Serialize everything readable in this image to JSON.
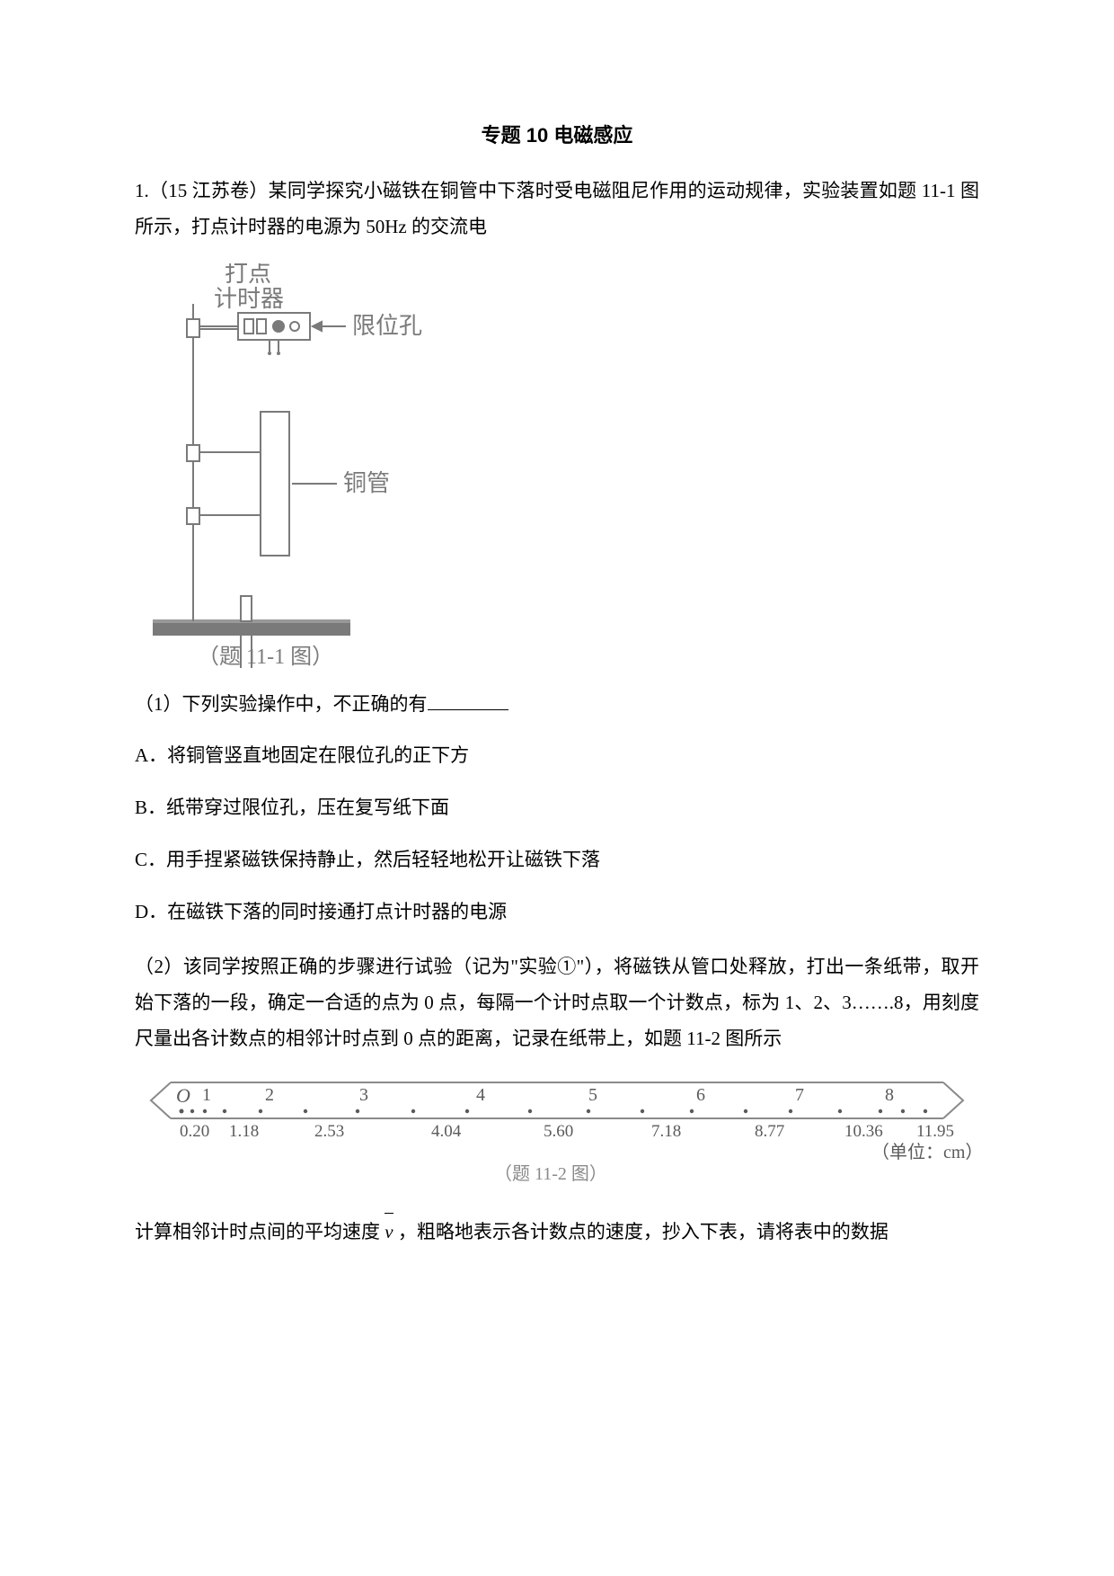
{
  "title": "专题 10  电磁感应",
  "q1": {
    "stem": "1.（15 江苏卷）某同学探究小磁铁在铜管中下落时受电磁阻尼作用的运动规律，实验装置如题 11-1 图所示，打点计时器的电源为 50Hz 的交流电",
    "fig1": {
      "label_timer_1": "打点",
      "label_timer_2": "计时器",
      "label_hole": "限位孔",
      "label_tube": "铜管",
      "caption": "（题 11-1 图）",
      "colors": {
        "line": "#7a7a7a",
        "text": "#7a7a7a",
        "bg": "#ffffff"
      }
    },
    "sub1": {
      "stem": "（1）下列实验操作中，不正确的有",
      "A": "A．将铜管竖直地固定在限位孔的正下方",
      "B": "B．纸带穿过限位孔，压在复写纸下面",
      "C": "C．用手捏紧磁铁保持静止，然后轻轻地松开让磁铁下落",
      "D": "D．在磁铁下落的同时接通打点计时器的电源"
    },
    "sub2": {
      "stem": "（2）该同学按照正确的步骤进行试验（记为\"实验①\"），将磁铁从管口处释放，打出一条纸带，取开始下落的一段，确定一合适的点为 0 点，每隔一个计时点取一个计数点，标为 1、2、3…….8，用刻度尺量出各计数点的相邻计时点到 0 点的距离，记录在纸带上，如题 11-2 图所示"
    },
    "fig2": {
      "origin": "O",
      "ticks": [
        "1",
        "2",
        "3",
        "4",
        "5",
        "6",
        "7",
        "8"
      ],
      "values": [
        "0.20",
        "1.18",
        "2.53",
        "4.04",
        "5.60",
        "7.18",
        "8.77",
        "10.36",
        "11.95"
      ],
      "unit": "（单位：cm）",
      "caption": "（题 11-2 图）",
      "colors": {
        "line": "#8a8a8a",
        "text": "#5a5a5a"
      }
    },
    "tail": {
      "pre": "计算相邻计时点间的平均速度",
      "sym": "v",
      "post": "，粗略地表示各计数点的速度，抄入下表，请将表中的数据"
    }
  }
}
